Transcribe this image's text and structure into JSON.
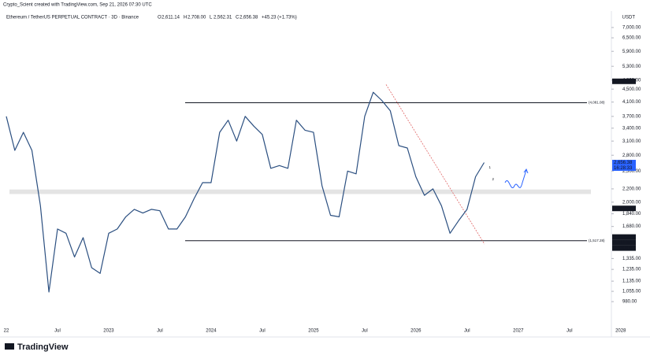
{
  "header": {
    "credit": "Crypto_Scient created with TradingView.com, Sep 21, 2026 07:30 UTC"
  },
  "footer": {
    "logo": "TradingView"
  },
  "chart_data": {
    "type": "line",
    "title": "Ethereum / TetherUS PERPETUAL CONTRACT · 3D · Binance",
    "ohlc": [
      {
        "label": "O",
        "value": "2,611.14"
      },
      {
        "label": "H",
        "value": "2,708.00"
      },
      {
        "label": "L",
        "value": "2,562.31"
      },
      {
        "label": "C",
        "value": "2,656.38"
      }
    ],
    "change": "+45.23 (+1.73%)",
    "y_axis_label": "USDT",
    "log_scale": true,
    "grid": false,
    "ylim": [
      842,
      7530
    ],
    "yticks": [
      {
        "value": 7000,
        "label": "7,000.00"
      },
      {
        "value": 6500,
        "label": "6,500.00"
      },
      {
        "value": 5900,
        "label": "5,900.00"
      },
      {
        "value": 5300,
        "label": "5,300.00"
      },
      {
        "value": 4800,
        "label": "4,800.00"
      },
      {
        "value": 4500,
        "label": "4,500.00"
      },
      {
        "value": 4100,
        "label": "4,100.00"
      },
      {
        "value": 3700,
        "label": "3,700.00"
      },
      {
        "value": 3400,
        "label": "3,400.00"
      },
      {
        "value": 3100,
        "label": "3,100.00"
      },
      {
        "value": 2800,
        "label": "2,800.00"
      },
      {
        "value": 2500,
        "label": "2,500.00"
      },
      {
        "value": 2200,
        "label": "2,200.00"
      },
      {
        "value": 2000,
        "label": "2,000.00"
      },
      {
        "value": 1840,
        "label": "1,840.00"
      },
      {
        "value": 1680,
        "label": "1,680.00"
      },
      {
        "value": 1335,
        "label": "1,335.00"
      },
      {
        "value": 1235,
        "label": "1,235.00"
      },
      {
        "value": 1135,
        "label": "1,135.00"
      },
      {
        "value": 1055,
        "label": "1,055.00"
      },
      {
        "value": 980,
        "label": "980.00"
      }
    ],
    "categories": [
      "22",
      null,
      null,
      null,
      null,
      null,
      "Jul",
      null,
      null,
      null,
      null,
      null,
      "2023",
      null,
      null,
      null,
      null,
      null,
      "Jul",
      null,
      null,
      null,
      null,
      null,
      "2024",
      null,
      null,
      null,
      null,
      null,
      "Jul",
      null,
      null,
      null,
      null,
      null,
      "2025",
      null,
      null,
      null,
      null,
      null,
      "Jul",
      null,
      null,
      null,
      null,
      null,
      "2026",
      null,
      null,
      null,
      null,
      null,
      "Jul",
      null,
      null,
      null,
      null,
      null,
      "2027",
      null,
      null,
      null,
      null,
      null,
      "Jul",
      null,
      null,
      null,
      null,
      null,
      "2028"
    ],
    "series": [
      {
        "name": "ETHUSDT",
        "color": "#2b4f80",
        "values": [
          3700,
          2900,
          3300,
          2900,
          1950,
          1050,
          1650,
          1600,
          1350,
          1550,
          1250,
          1200,
          1600,
          1650,
          1800,
          1900,
          1850,
          1900,
          1880,
          1650,
          1650,
          1800,
          2050,
          2300,
          2300,
          3300,
          3600,
          3100,
          3700,
          3450,
          3250,
          2550,
          2600,
          2550,
          3600,
          3350,
          3300,
          2250,
          1820,
          1800,
          2500,
          2450,
          3700,
          4400,
          4150,
          3850,
          3000,
          2950,
          2400,
          2100,
          2200,
          1950,
          1600,
          1750,
          1900,
          2400,
          2656.38,
          null,
          null,
          null,
          null,
          null,
          null,
          null,
          null,
          null,
          null,
          null,
          null,
          null,
          null,
          null,
          null
        ]
      }
    ],
    "levels": [
      {
        "value": 4081.08,
        "label": "(4,081.08)"
      },
      {
        "value": 1517.28,
        "label": "(1,517.28)"
      }
    ],
    "zone": [
      2120,
      2190
    ],
    "trendline": [
      4650,
      1480
    ],
    "price_labels": [
      {
        "value": 4758.68,
        "text": "4,758.68",
        "color": "#131722"
      },
      {
        "value": 2656.38,
        "text": "2,656.38",
        "color": "#2962ff"
      },
      {
        "value": 1912.48,
        "text": "1,912.48",
        "color": "#131722"
      },
      {
        "value": 1557.32,
        "text": "1,557.32",
        "color": "#131722"
      },
      {
        "value": 1511.54,
        "text": "1,511.54",
        "color": "#131722"
      },
      {
        "value": 1450.05,
        "text": "1,450.05",
        "color": "#131722"
      }
    ],
    "countdown": "16:28:33",
    "annotations": [
      "1",
      "2"
    ]
  }
}
